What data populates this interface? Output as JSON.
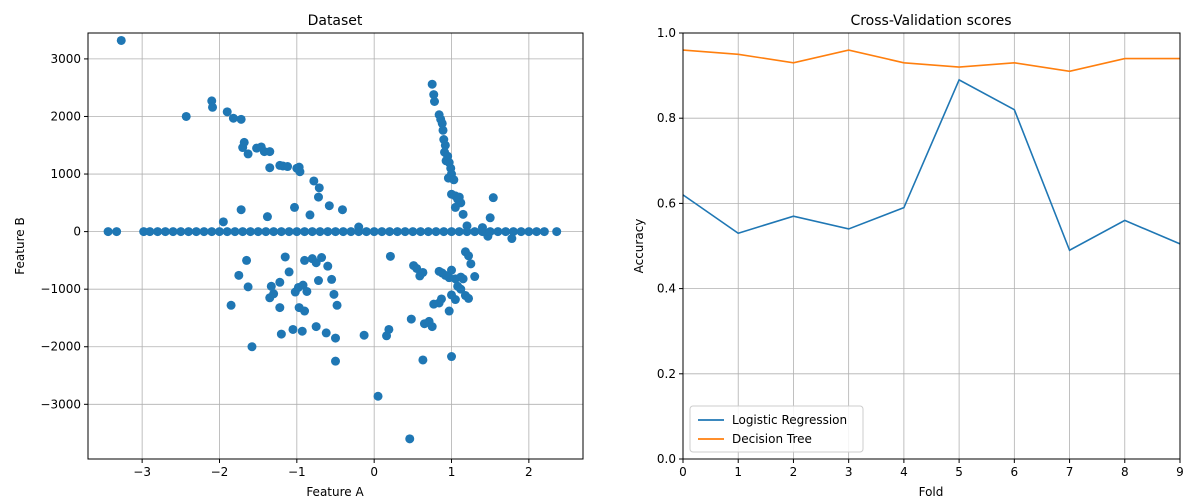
{
  "chart_data": [
    {
      "type": "scatter",
      "title": "Dataset",
      "xlabel": "Feature A",
      "ylabel": "Feature B",
      "xlim": [
        -3.7,
        2.7
      ],
      "ylim": [
        -3950,
        3450
      ],
      "xticks": [
        -3,
        -2,
        -1,
        0,
        1,
        2
      ],
      "yticks": [
        -3000,
        -2000,
        -1000,
        0,
        1000,
        2000,
        3000
      ],
      "xtick_labels": [
        "−3",
        "−2",
        "−1",
        "0",
        "1",
        "2"
      ],
      "ytick_labels": [
        "−3000",
        "−2000",
        "−1000",
        "0",
        "1000",
        "2000",
        "3000"
      ],
      "grid": true,
      "color": "#1f77b4",
      "series": [
        {
          "points": [
            [
              -3.27,
              3320
            ],
            [
              -2.43,
              2000
            ],
            [
              -2.1,
              2270
            ],
            [
              -2.09,
              2160
            ],
            [
              -1.9,
              2080
            ],
            [
              -1.82,
              1970
            ],
            [
              -1.72,
              1950
            ],
            [
              -1.7,
              1460
            ],
            [
              -1.68,
              1550
            ],
            [
              -1.63,
              1350
            ],
            [
              -1.52,
              1450
            ],
            [
              -1.46,
              1470
            ],
            [
              -1.42,
              1390
            ],
            [
              -1.35,
              1390
            ],
            [
              -1.35,
              1110
            ],
            [
              -1.22,
              1150
            ],
            [
              -1.18,
              1140
            ],
            [
              -1.12,
              1130
            ],
            [
              -1.0,
              1100
            ],
            [
              -0.97,
              1120
            ],
            [
              -0.96,
              1040
            ],
            [
              -0.78,
              880
            ],
            [
              -0.71,
              760
            ],
            [
              -0.72,
              600
            ],
            [
              -0.58,
              450
            ],
            [
              -0.41,
              380
            ],
            [
              -1.72,
              380
            ],
            [
              -1.38,
              260
            ],
            [
              -1.03,
              420
            ],
            [
              -0.83,
              290
            ],
            [
              -1.95,
              170
            ],
            [
              -0.2,
              80
            ],
            [
              0.75,
              2560
            ],
            [
              0.77,
              2380
            ],
            [
              0.78,
              2260
            ],
            [
              0.84,
              2030
            ],
            [
              0.86,
              1950
            ],
            [
              0.88,
              1880
            ],
            [
              0.89,
              1760
            ],
            [
              0.9,
              1600
            ],
            [
              0.92,
              1500
            ],
            [
              0.91,
              1380
            ],
            [
              0.93,
              1230
            ],
            [
              0.95,
              1310
            ],
            [
              0.97,
              1200
            ],
            [
              0.99,
              1100
            ],
            [
              0.96,
              930
            ],
            [
              1.0,
              1000
            ],
            [
              1.03,
              900
            ],
            [
              1.0,
              650
            ],
            [
              1.05,
              620
            ],
            [
              1.08,
              560
            ],
            [
              1.1,
              600
            ],
            [
              1.12,
              500
            ],
            [
              1.05,
              420
            ],
            [
              1.15,
              300
            ],
            [
              1.2,
              100
            ],
            [
              1.4,
              70
            ],
            [
              1.47,
              -80
            ],
            [
              1.5,
              240
            ],
            [
              1.54,
              590
            ],
            [
              1.78,
              -120
            ],
            [
              -3.44,
              0
            ],
            [
              -3.33,
              0
            ],
            [
              -2.98,
              0
            ],
            [
              -2.9,
              0
            ],
            [
              -2.8,
              0
            ],
            [
              -2.7,
              0
            ],
            [
              -2.6,
              0
            ],
            [
              -2.5,
              0
            ],
            [
              -2.4,
              0
            ],
            [
              -2.3,
              0
            ],
            [
              -2.2,
              0
            ],
            [
              -2.1,
              0
            ],
            [
              -2.0,
              0
            ],
            [
              -1.9,
              0
            ],
            [
              -1.8,
              0
            ],
            [
              -1.7,
              0
            ],
            [
              -1.6,
              0
            ],
            [
              -1.5,
              0
            ],
            [
              -1.4,
              0
            ],
            [
              -1.3,
              0
            ],
            [
              -1.2,
              0
            ],
            [
              -1.1,
              0
            ],
            [
              -1.0,
              0
            ],
            [
              -0.9,
              0
            ],
            [
              -0.8,
              0
            ],
            [
              -0.7,
              0
            ],
            [
              -0.6,
              0
            ],
            [
              -0.5,
              0
            ],
            [
              -0.4,
              0
            ],
            [
              -0.3,
              0
            ],
            [
              -0.2,
              0
            ],
            [
              -0.1,
              0
            ],
            [
              0.0,
              0
            ],
            [
              0.1,
              0
            ],
            [
              0.2,
              0
            ],
            [
              0.3,
              0
            ],
            [
              0.4,
              0
            ],
            [
              0.5,
              0
            ],
            [
              0.6,
              0
            ],
            [
              0.7,
              0
            ],
            [
              0.8,
              0
            ],
            [
              0.9,
              0
            ],
            [
              1.0,
              0
            ],
            [
              1.1,
              0
            ],
            [
              1.2,
              0
            ],
            [
              1.3,
              0
            ],
            [
              1.4,
              0
            ],
            [
              1.5,
              0
            ],
            [
              1.6,
              0
            ],
            [
              1.7,
              0
            ],
            [
              1.8,
              0
            ],
            [
              1.9,
              0
            ],
            [
              2.0,
              0
            ],
            [
              2.1,
              0
            ],
            [
              2.2,
              0
            ],
            [
              2.36,
              0
            ],
            [
              -1.65,
              -500
            ],
            [
              -1.75,
              -760
            ],
            [
              -1.63,
              -960
            ],
            [
              -1.85,
              -1280
            ],
            [
              -1.35,
              -1150
            ],
            [
              -1.3,
              -1080
            ],
            [
              -1.33,
              -950
            ],
            [
              -1.22,
              -880
            ],
            [
              -1.15,
              -440
            ],
            [
              -1.1,
              -700
            ],
            [
              -1.02,
              -1050
            ],
            [
              -0.98,
              -970
            ],
            [
              -0.92,
              -930
            ],
            [
              -0.9,
              -500
            ],
            [
              -0.87,
              -1040
            ],
            [
              -0.8,
              -470
            ],
            [
              -0.75,
              -540
            ],
            [
              -0.72,
              -850
            ],
            [
              -0.68,
              -450
            ],
            [
              -0.6,
              -600
            ],
            [
              -0.55,
              -830
            ],
            [
              -0.52,
              -1090
            ],
            [
              -0.48,
              -1280
            ],
            [
              -1.22,
              -1320
            ],
            [
              -0.97,
              -1320
            ],
            [
              -0.9,
              -1380
            ],
            [
              -1.2,
              -1780
            ],
            [
              -1.05,
              -1700
            ],
            [
              -0.93,
              -1730
            ],
            [
              -0.75,
              -1650
            ],
            [
              -0.62,
              -1760
            ],
            [
              -0.5,
              -1850
            ],
            [
              -1.58,
              -2000
            ],
            [
              -0.5,
              -2250
            ],
            [
              -0.13,
              -1800
            ],
            [
              0.16,
              -1810
            ],
            [
              0.19,
              -1700
            ],
            [
              0.05,
              -2860
            ],
            [
              0.46,
              -3600
            ],
            [
              0.21,
              -430
            ],
            [
              0.51,
              -590
            ],
            [
              0.55,
              -640
            ],
            [
              0.59,
              -770
            ],
            [
              0.63,
              -710
            ],
            [
              0.84,
              -690
            ],
            [
              0.88,
              -720
            ],
            [
              0.92,
              -760
            ],
            [
              0.97,
              -800
            ],
            [
              1.0,
              -670
            ],
            [
              1.05,
              -820
            ],
            [
              1.08,
              -950
            ],
            [
              1.12,
              -790
            ],
            [
              1.15,
              -820
            ],
            [
              1.18,
              -350
            ],
            [
              1.22,
              -420
            ],
            [
              1.25,
              -560
            ],
            [
              1.3,
              -780
            ],
            [
              1.12,
              -1000
            ],
            [
              1.05,
              -1180
            ],
            [
              1.0,
              -1100
            ],
            [
              0.97,
              -1380
            ],
            [
              0.87,
              -1170
            ],
            [
              0.84,
              -1240
            ],
            [
              0.77,
              -1260
            ],
            [
              1.18,
              -1110
            ],
            [
              1.22,
              -1160
            ],
            [
              0.65,
              -1600
            ],
            [
              0.71,
              -1560
            ],
            [
              0.75,
              -1650
            ],
            [
              0.48,
              -1520
            ],
            [
              0.63,
              -2230
            ],
            [
              1.0,
              -2170
            ]
          ]
        }
      ]
    },
    {
      "type": "line",
      "title": "Cross-Validation scores",
      "xlabel": "Fold",
      "ylabel": "Accuracy",
      "xlim": [
        0,
        9
      ],
      "ylim": [
        0.0,
        1.0
      ],
      "xticks": [
        0,
        1,
        2,
        3,
        4,
        5,
        6,
        7,
        8,
        9
      ],
      "yticks": [
        0.0,
        0.2,
        0.4,
        0.6,
        0.8,
        1.0
      ],
      "xtick_labels": [
        "0",
        "1",
        "2",
        "3",
        "4",
        "5",
        "6",
        "7",
        "8",
        "9"
      ],
      "ytick_labels": [
        "0.0",
        "0.2",
        "0.4",
        "0.6",
        "0.8",
        "1.0"
      ],
      "grid": true,
      "legend_position": "bottom-left",
      "x": [
        0,
        1,
        2,
        3,
        4,
        5,
        6,
        7,
        8,
        9
      ],
      "series": [
        {
          "name": "Logistic Regression",
          "color": "#1f77b4",
          "values": [
            0.62,
            0.53,
            0.57,
            0.54,
            0.59,
            0.89,
            0.82,
            0.49,
            0.56,
            0.505
          ]
        },
        {
          "name": "Decision Tree",
          "color": "#ff7f0e",
          "values": [
            0.96,
            0.95,
            0.93,
            0.96,
            0.93,
            0.92,
            0.93,
            0.91,
            0.94,
            0.94
          ]
        }
      ]
    }
  ]
}
